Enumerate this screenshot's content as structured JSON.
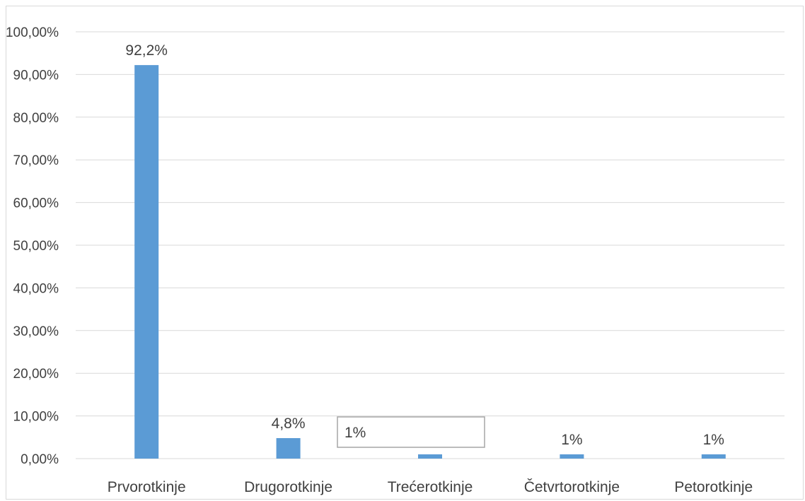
{
  "chart_data": {
    "type": "bar",
    "categories": [
      "Prvorotkinje",
      "Drugorotkinje",
      "Trećerotkinje",
      "Četvrtorotkinje",
      "Petorotkinje"
    ],
    "values": [
      92.2,
      4.8,
      1,
      1,
      1
    ],
    "data_labels": [
      "92,2%",
      "4,8%",
      "1%",
      "1%",
      "1%"
    ],
    "y_ticks": [
      "0,00%",
      "10,00%",
      "20,00%",
      "30,00%",
      "40,00%",
      "50,00%",
      "60,00%",
      "70,00%",
      "80,00%",
      "90,00%",
      "100,00%"
    ],
    "ylim": [
      0,
      100
    ],
    "grid": true,
    "bar_color": "#5b9bd5",
    "title": "",
    "xlabel": "",
    "ylabel": ""
  }
}
